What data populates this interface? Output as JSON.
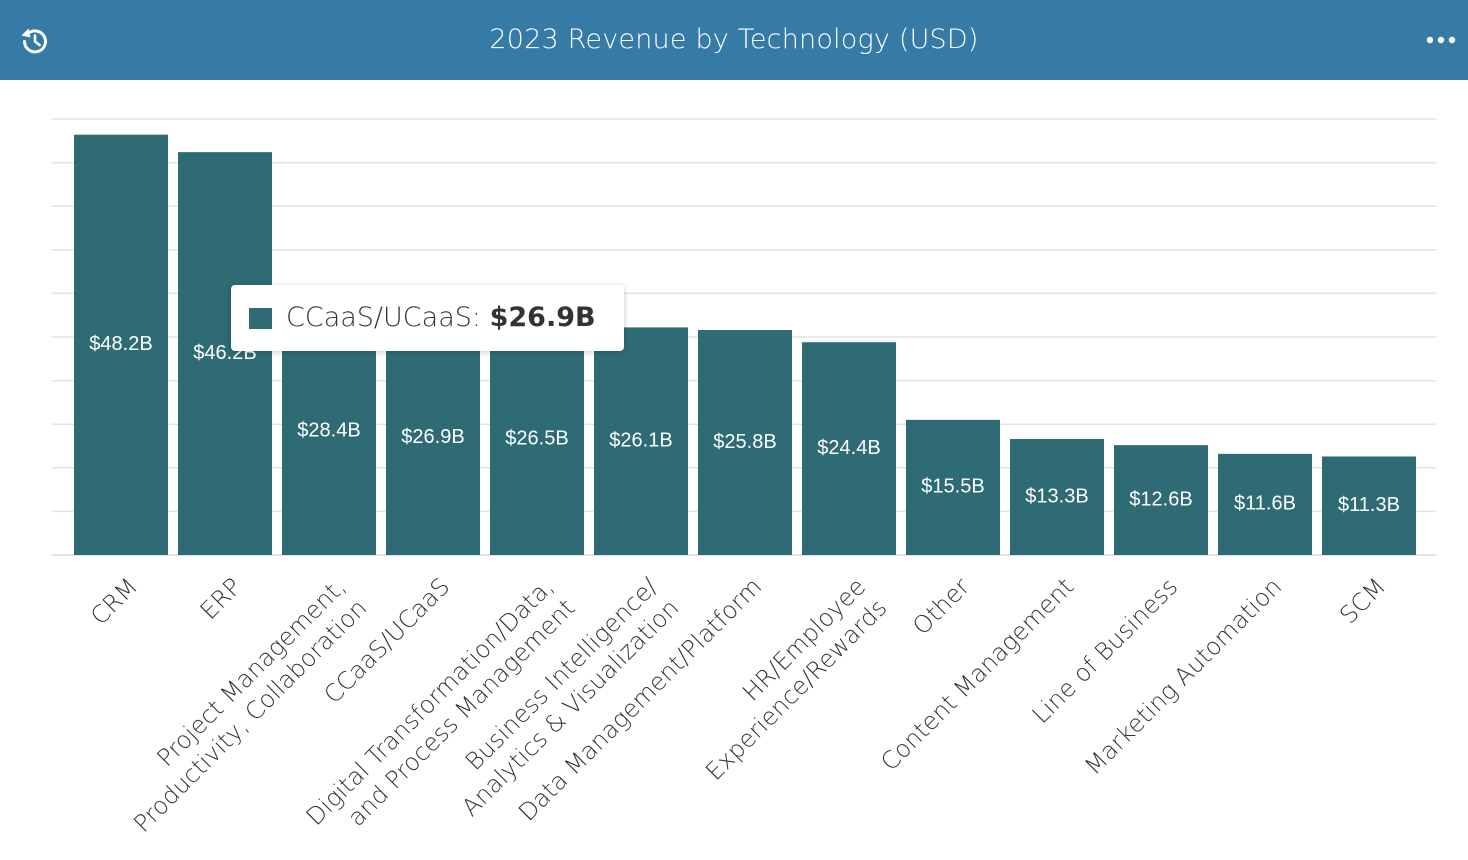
{
  "header": {
    "title": "2023 Revenue by Technology (USD)",
    "history_icon": "history-icon",
    "more_icon": "more-horizontal-icon",
    "background_color": "#357ba6"
  },
  "tooltip": {
    "series_label": "CCaaS/UCaaS:",
    "value": "$26.9B",
    "swatch_color": "#2e6b74"
  },
  "chart_data": {
    "type": "bar",
    "title": "2023 Revenue by Technology (USD)",
    "xlabel": "",
    "ylabel": "",
    "bar_color": "#2e6b74",
    "grid": true,
    "ylim": [
      0,
      50
    ],
    "categories": [
      [
        "CRM"
      ],
      [
        "ERP"
      ],
      [
        "Project Management,",
        "Productivity, Collaboration"
      ],
      [
        "CCaaS/UCaaS"
      ],
      [
        "Digital Transformation/Data,",
        "and Process Management"
      ],
      [
        "Business Intelligence/",
        "Analytics & Visualization"
      ],
      [
        "Data Management/Platform"
      ],
      [
        "HR/Employee",
        "Experience/Rewards"
      ],
      [
        "Other"
      ],
      [
        "Content Management"
      ],
      [
        "Line of Business"
      ],
      [
        "Marketing Automation"
      ],
      [
        "SCM"
      ]
    ],
    "values": [
      48.2,
      46.2,
      28.4,
      26.9,
      26.5,
      26.1,
      25.8,
      24.4,
      15.5,
      13.3,
      12.6,
      11.6,
      11.3
    ],
    "data_labels": [
      "$48.2B",
      "$46.2B",
      "$28.4B",
      "$26.9B",
      "$26.5B",
      "$26.1B",
      "$25.8B",
      "$24.4B",
      "$15.5B",
      "$13.3B",
      "$12.6B",
      "$11.6B",
      "$11.3B"
    ]
  }
}
